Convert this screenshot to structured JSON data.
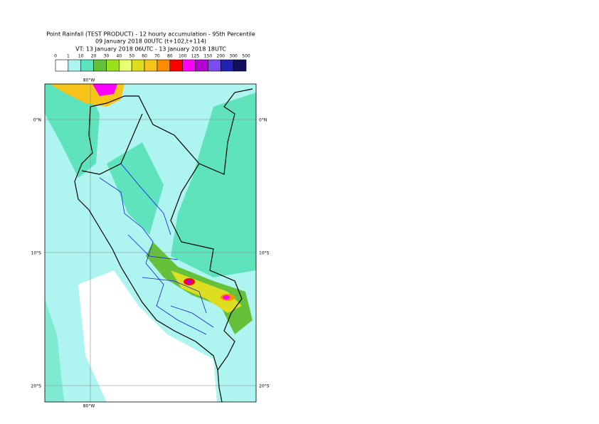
{
  "header": {
    "title_lines": [
      "Point Rainfall (TEST PRODUCT) - 12 hourly accumulation - 95th Percentile",
      "09 January 2018 00UTC (t+102,t+114)",
      "VT: 13 January 2018 06UTC - 13 January 2018 18UTC"
    ]
  },
  "legend": {
    "labels": [
      "0",
      "1",
      "10",
      "20",
      "30",
      "40",
      "50",
      "60",
      "70",
      "80",
      "100",
      "125",
      "150",
      "200",
      "300",
      "500"
    ],
    "colors": [
      "#ffffff",
      "#aef4f0",
      "#5fe3bd",
      "#66c13a",
      "#9be01c",
      "#e8ff72",
      "#dede20",
      "#f7c41a",
      "#ff8c00",
      "#ff0000",
      "#ff00ff",
      "#b400d2",
      "#7a4cf0",
      "#2222b0",
      "#10105a"
    ]
  },
  "map": {
    "lon_labels": [
      "80°W"
    ],
    "lat_labels": [
      "0°N",
      "10°S",
      "20°S"
    ]
  }
}
